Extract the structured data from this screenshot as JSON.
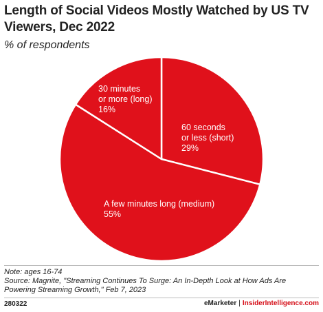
{
  "chart_data": {
    "type": "pie",
    "title": "Length of Social Videos Mostly Watched by US TV Viewers, Dec 2022",
    "subtitle": "% of respondents",
    "slices": [
      {
        "label_lines": [
          "60 seconds",
          "or less (short)"
        ],
        "value_label": "29%",
        "value": 29
      },
      {
        "label_lines": [
          "A few minutes long (medium)"
        ],
        "value_label": "55%",
        "value": 55
      },
      {
        "label_lines": [
          "30 minutes",
          "or more (long)"
        ],
        "value_label": "16%",
        "value": 16
      }
    ],
    "colors": {
      "slice": "#e0111b",
      "edge": "#ffffff"
    }
  },
  "note": {
    "line1": "Note: ages 16-74",
    "line2": "Source: Magnite, \"Streaming Continues To Surge: An In-Depth Look at How Ads Are",
    "line3": "Powering Streaming Growth,\" Feb 7, 2023"
  },
  "footer": {
    "id": "280322",
    "brand": "eMarketer",
    "separator": "|",
    "site": "InsiderIntelligence.com"
  }
}
